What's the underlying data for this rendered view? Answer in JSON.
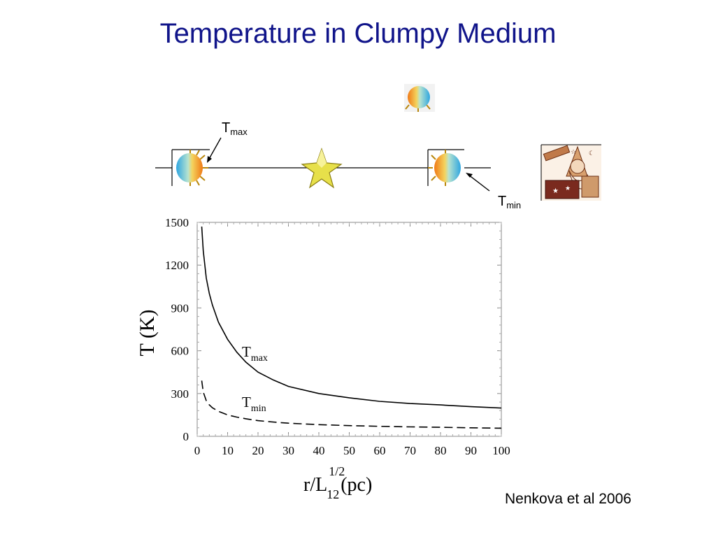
{
  "slide": {
    "title": "Temperature in Clumpy Medium",
    "citation": "Nenkova et al 2006"
  },
  "schematic": {
    "tmax_label": {
      "main": "T",
      "sub": "max"
    },
    "tmin_label": {
      "main": "T",
      "sub": "min"
    },
    "icons": [
      "clump-icon",
      "star-icon",
      "clump-icon",
      "clump-icon",
      "astronomer-telescope-icon"
    ]
  },
  "chart_data": {
    "type": "line",
    "xlabel": {
      "main": "r/L",
      "sup": "1/2",
      "sub": "12",
      "unit": "(pc)"
    },
    "ylabel": "T (K)",
    "xlim": [
      0,
      100
    ],
    "ylim": [
      0,
      1500
    ],
    "xticks": [
      0,
      10,
      20,
      30,
      40,
      50,
      60,
      70,
      80,
      90,
      100
    ],
    "yticks": [
      0,
      300,
      600,
      900,
      1200,
      1500
    ],
    "grid": false,
    "series": [
      {
        "name": "Tmax",
        "style": "solid",
        "x": [
          1.5,
          2,
          3,
          4,
          5,
          7,
          10,
          13,
          16,
          20,
          25,
          30,
          40,
          50,
          60,
          70,
          80,
          90,
          100
        ],
        "y": [
          1470,
          1300,
          1110,
          1000,
          920,
          800,
          680,
          590,
          520,
          450,
          395,
          350,
          300,
          270,
          245,
          230,
          220,
          208,
          198
        ]
      },
      {
        "name": "Tmin",
        "style": "dashed",
        "x": [
          1.5,
          2,
          3,
          4,
          5,
          7,
          10,
          13,
          16,
          20,
          25,
          30,
          40,
          50,
          60,
          70,
          80,
          90,
          100
        ],
        "y": [
          390,
          310,
          250,
          220,
          200,
          175,
          150,
          135,
          123,
          110,
          100,
          92,
          82,
          75,
          70,
          66,
          63,
          60,
          57
        ]
      }
    ],
    "annotations": [
      {
        "series": "Tmax",
        "main": "T",
        "sub": "max"
      },
      {
        "series": "Tmin",
        "main": "T",
        "sub": "min"
      }
    ]
  }
}
